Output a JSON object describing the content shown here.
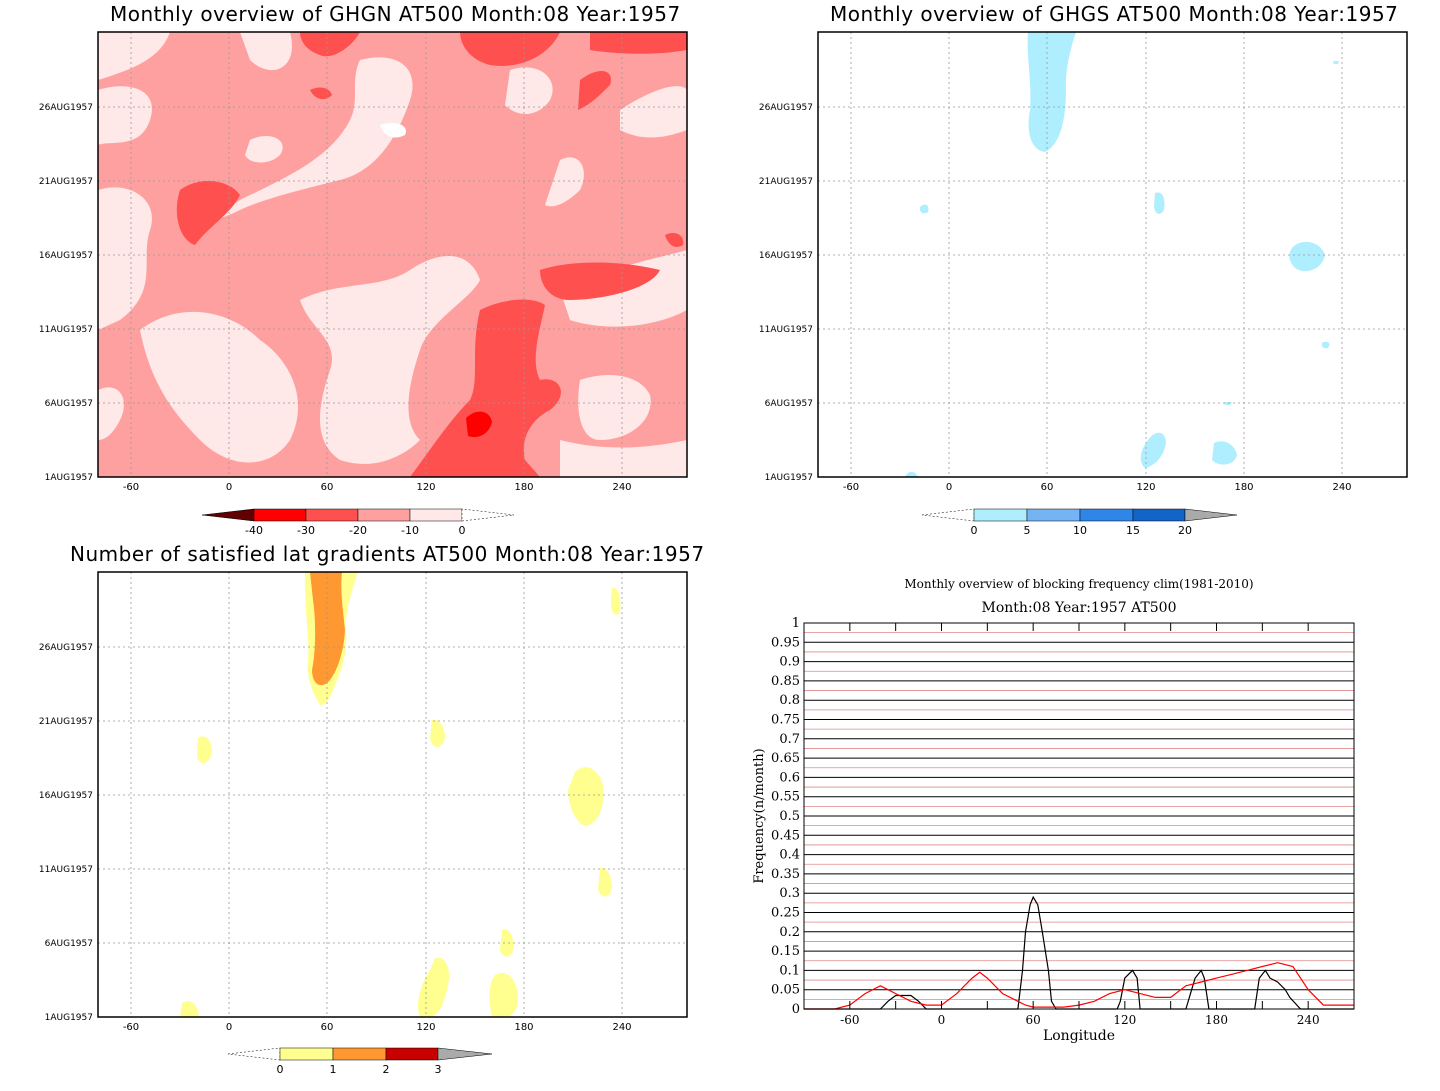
{
  "panels": {
    "ghgn": {
      "title": "Monthly overview of GHGN AT500 Month:08 Year:1957",
      "colorbar": {
        "labels": [
          "-40",
          "-30",
          "-20",
          "-10",
          "0"
        ],
        "colors": [
          "#600000",
          "#ff0000",
          "#ff5050",
          "#ffa0a0",
          "#ffe8e8"
        ]
      }
    },
    "ghgs": {
      "title": "Monthly overview of GHGS AT500 Month:08 Year:1957",
      "colorbar": {
        "labels": [
          "0",
          "5",
          "10",
          "15",
          "20"
        ],
        "colors": [
          "#aeeefe",
          "#74b4f4",
          "#2e86e8",
          "#1464c8",
          "#aaaaaa"
        ]
      }
    },
    "lat": {
      "title": "Number of satisfied lat gradients AT500 Month:08 Year:1957",
      "colorbar": {
        "labels": [
          "0",
          "1",
          "2",
          "3"
        ],
        "colors": [
          "#ffff90",
          "#ff9830",
          "#c80000",
          "#aaaaaa"
        ]
      }
    },
    "freq": {
      "title": "Monthly overview of blocking frequency clim(1981-2010)",
      "subtitle": "Month:08 Year:1957  AT500",
      "xlabel": "Longitude",
      "ylabel": "Frequency(n/month)"
    }
  },
  "axes": {
    "x_ticks": [
      "-60",
      "0",
      "60",
      "120",
      "180",
      "240"
    ],
    "y_ticks": [
      "1AUG1957",
      "6AUG1957",
      "11AUG1957",
      "16AUG1957",
      "21AUG1957",
      "26AUG1957"
    ]
  },
  "chart_data": [
    {
      "type": "heatmap",
      "title": "Monthly overview of GHGN AT500 Month:08 Year:1957",
      "x_range": [
        -80,
        280
      ],
      "y_range": [
        "1AUG1957",
        "31AUG1957"
      ],
      "levels": [
        -40,
        -30,
        -20,
        -10,
        0
      ],
      "colors": [
        "#600000",
        "#ff0000",
        "#ff5050",
        "#ffa0a0",
        "#ffe8e8"
      ]
    },
    {
      "type": "heatmap",
      "title": "Monthly overview of GHGS AT500 Month:08 Year:1957",
      "x_range": [
        -80,
        280
      ],
      "y_range": [
        "1AUG1957",
        "31AUG1957"
      ],
      "levels": [
        0,
        5,
        10,
        15,
        20
      ],
      "colors": [
        "#aeeefe",
        "#74b4f4",
        "#2e86e8",
        "#1464c8",
        "#aaaaaa"
      ]
    },
    {
      "type": "heatmap",
      "title": "Number of satisfied lat gradients AT500 Month:08 Year:1957",
      "x_range": [
        -80,
        280
      ],
      "y_range": [
        "1AUG1957",
        "31AUG1957"
      ],
      "levels": [
        0,
        1,
        2,
        3
      ],
      "colors": [
        "#ffff90",
        "#ff9830",
        "#c80000",
        "#aaaaaa"
      ]
    },
    {
      "type": "line",
      "title": "Monthly overview of blocking frequency clim(1981-2010)",
      "subtitle": "Month:08 Year:1957  AT500",
      "xlabel": "Longitude",
      "ylabel": "Frequency(n/month)",
      "xlim": [
        -90,
        270
      ],
      "ylim": [
        0,
        1
      ],
      "y_ticks": [
        "0",
        "0.05",
        "0.1",
        "0.15",
        "0.2",
        "0.25",
        "0.3",
        "0.35",
        "0.4",
        "0.45",
        "0.5",
        "0.55",
        "0.6",
        "0.65",
        "0.7",
        "0.75",
        "0.8",
        "0.85",
        "0.9",
        "0.95",
        "1"
      ],
      "series": [
        {
          "color": "#000000",
          "x": [
            -90,
            -40,
            -35,
            -30,
            -20,
            -15,
            -10,
            50,
            53,
            55,
            58,
            60,
            63,
            66,
            70,
            72,
            75,
            115,
            117,
            120,
            125,
            128,
            130,
            160,
            163,
            166,
            170,
            172,
            175,
            205,
            208,
            212,
            215,
            220,
            225,
            228,
            235,
            270
          ],
          "y": [
            0,
            0,
            0.02,
            0.035,
            0.035,
            0.02,
            0,
            0,
            0.1,
            0.2,
            0.27,
            0.29,
            0.27,
            0.2,
            0.1,
            0.02,
            0,
            0,
            0.02,
            0.08,
            0.1,
            0.08,
            0,
            0,
            0.04,
            0.08,
            0.1,
            0.08,
            0,
            0,
            0.08,
            0.1,
            0.08,
            0.07,
            0.05,
            0.03,
            0,
            0
          ]
        },
        {
          "color": "#ff0000",
          "x": [
            -90,
            -70,
            -60,
            -50,
            -40,
            -35,
            -30,
            -20,
            -10,
            0,
            10,
            20,
            25,
            30,
            40,
            50,
            55,
            60,
            70,
            80,
            90,
            100,
            110,
            120,
            130,
            140,
            150,
            160,
            170,
            180,
            190,
            200,
            210,
            220,
            230,
            240,
            250,
            270
          ],
          "y": [
            0,
            0,
            0.01,
            0.04,
            0.06,
            0.05,
            0.04,
            0.02,
            0.01,
            0.01,
            0.04,
            0.08,
            0.095,
            0.08,
            0.04,
            0.02,
            0.01,
            0.005,
            0.005,
            0.005,
            0.01,
            0.02,
            0.04,
            0.05,
            0.04,
            0.03,
            0.03,
            0.06,
            0.07,
            0.08,
            0.09,
            0.1,
            0.11,
            0.12,
            0.11,
            0.05,
            0.01,
            0.01
          ]
        }
      ]
    }
  ]
}
